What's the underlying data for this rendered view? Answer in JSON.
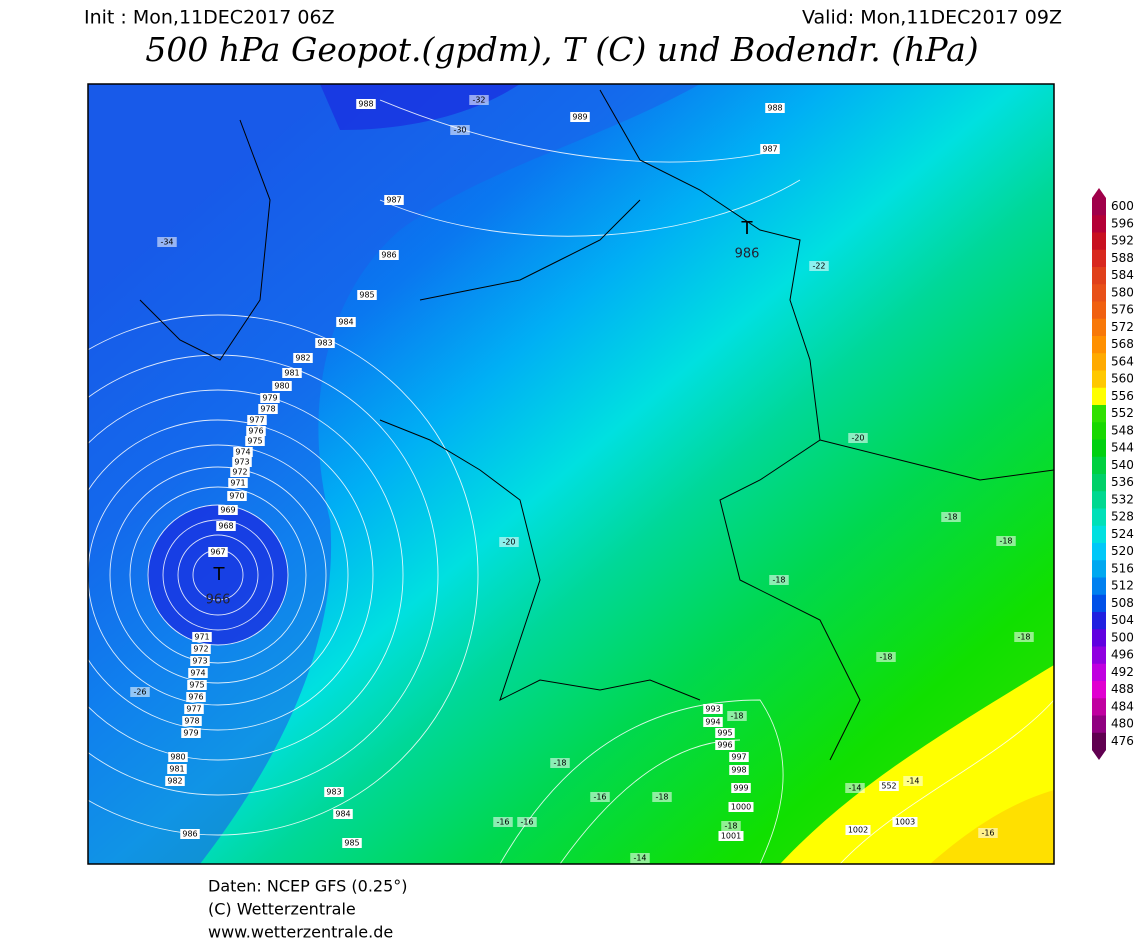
{
  "header": {
    "init": "Init : Mon,11DEC2017 06Z",
    "valid": "Valid: Mon,11DEC2017 09Z",
    "title": "500 hPa Geopot.(gpdm), T (C) und Bodendr. (hPa)"
  },
  "colorbar": {
    "levels": [
      600,
      596,
      592,
      588,
      584,
      580,
      576,
      572,
      568,
      564,
      560,
      556,
      552,
      548,
      544,
      540,
      536,
      532,
      528,
      524,
      520,
      516,
      512,
      508,
      504,
      500,
      496,
      492,
      488,
      484,
      480,
      476
    ],
    "colors": [
      "#a0004a",
      "#b40036",
      "#c81020",
      "#d8281e",
      "#e0401a",
      "#e85018",
      "#f06010",
      "#f87808",
      "#ff9000",
      "#ffaa00",
      "#ffc800",
      "#ffff00",
      "#30e000",
      "#18d800",
      "#00d010",
      "#00d040",
      "#00d068",
      "#00d890",
      "#00e0b8",
      "#00e0e0",
      "#00c8f8",
      "#00a8f0",
      "#0080f0",
      "#0050e8",
      "#2020e0",
      "#6000e0",
      "#9000e0",
      "#c000e0",
      "#e000d0",
      "#c000a0",
      "#900080",
      "#600050"
    ]
  },
  "map": {
    "contour_labels": [
      "988",
      "-32",
      "989",
      "-30",
      "988",
      "987",
      "987",
      "986",
      "985",
      "984",
      "983",
      "982",
      "981",
      "980",
      "979",
      "978",
      "977",
      "976",
      "975",
      "974",
      "973",
      "972",
      "971",
      "970",
      "969",
      "968",
      "967",
      "T",
      "966",
      "T",
      "986",
      "-34",
      "-22",
      "-20",
      "-20",
      "-18",
      "-18",
      "-18",
      "-18",
      "-18",
      "971",
      "972",
      "973",
      "974",
      "975",
      "976",
      "977",
      "978",
      "979",
      "980",
      "981",
      "982",
      "-26",
      "983",
      "984",
      "985",
      "986",
      "993",
      "994",
      "-18",
      "995",
      "996",
      "997",
      "998",
      "999",
      "1000",
      "1001",
      "-18",
      "-18",
      "-16",
      "-18",
      "-16",
      "-16",
      "-14",
      "-14",
      "552",
      "-14",
      "1002",
      "1003",
      "-16"
    ]
  },
  "footer": {
    "lines": [
      "Daten: NCEP GFS (0.25°)",
      "(C) Wetterzentrale",
      "www.wetterzentrale.de"
    ]
  }
}
